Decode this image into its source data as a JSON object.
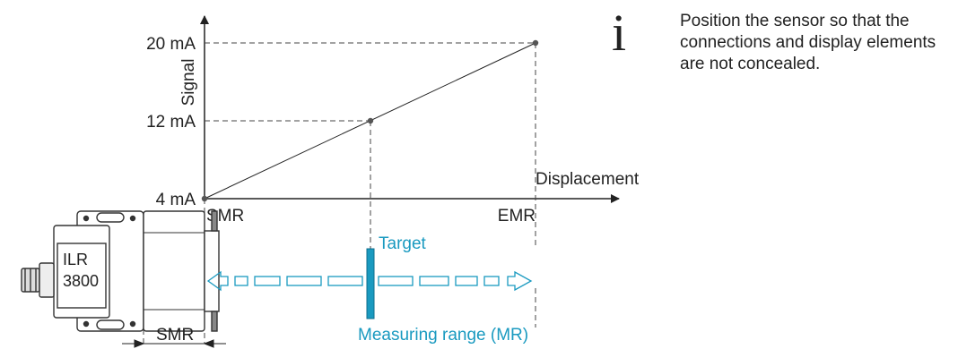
{
  "axes": {
    "y_label": "Signal",
    "x_label": "Displacement",
    "y_ticks": [
      "20 mA",
      "12 mA",
      "4 mA"
    ],
    "x_ticks": [
      "SMR",
      "EMR"
    ]
  },
  "points": [
    {
      "displacement": "SMR",
      "signal_mA": 4
    },
    {
      "displacement": "MR/2",
      "signal_mA": 12
    },
    {
      "displacement": "EMR",
      "signal_mA": 20
    }
  ],
  "sensor": {
    "line1": "ILR",
    "line2": "3800"
  },
  "target_label": "Target",
  "range_label": "Measuring range (MR)",
  "smr_bottom_label": "SMR",
  "colors": {
    "accent": "#1a9ac0",
    "line": "#222222"
  },
  "note": {
    "icon": "info-icon",
    "text": "Position the sensor so that the connections and display elements are not concealed."
  }
}
